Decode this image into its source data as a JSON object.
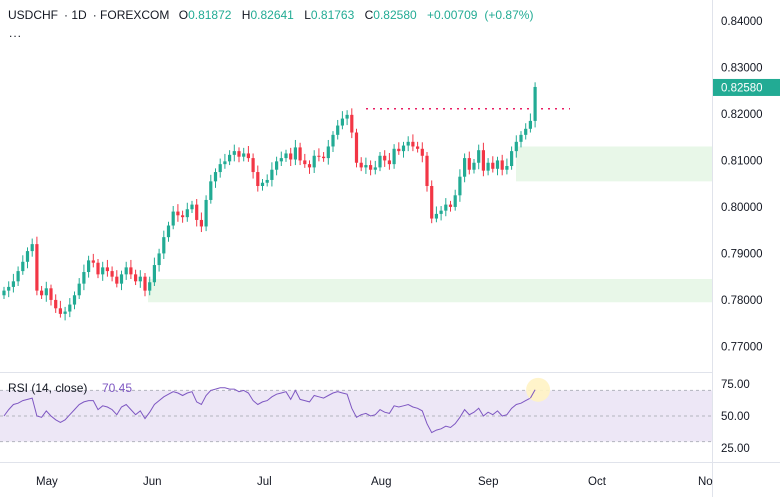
{
  "header": {
    "symbol": "USDCHF",
    "interval": "1D",
    "exchange": "FOREXCOM",
    "open_label": "O",
    "open": "0.81872",
    "high_label": "H",
    "high": "0.82641",
    "low_label": "L",
    "low": "0.81763",
    "close_label": "C",
    "close": "0.82580",
    "change": "+0.00709",
    "change_pct": "(+0.87%)",
    "more": "..."
  },
  "colors": {
    "up": "#22ab94",
    "down": "#f23645",
    "highlight": "#e8f7e8",
    "resistance": "#e91e63",
    "rsi_line": "#7e57c2",
    "rsi_band": "#ede7f6",
    "price_tag": "#22ab94"
  },
  "chart_data": [
    {
      "type": "candlestick",
      "ylim": [
        0.7645,
        0.8445
      ],
      "price_ticks": [
        "0.84000",
        "0.83000",
        "0.82000",
        "0.81000",
        "0.80000",
        "0.79000",
        "0.78000",
        "0.77000"
      ],
      "last_price_label": "0.82580",
      "x_ticks": [
        "May",
        "Jun",
        "Jul",
        "Aug",
        "Sep",
        "Oct",
        "No"
      ],
      "resistance_level": 0.8211,
      "zones": [
        {
          "from": 0.8055,
          "to": 0.813
        },
        {
          "from": 0.7795,
          "to": 0.7845
        }
      ],
      "close": [
        0.782,
        0.7828,
        0.784,
        0.7862,
        0.7882,
        0.7905,
        0.792,
        0.782,
        0.781,
        0.7825,
        0.78,
        0.7782,
        0.777,
        0.7775,
        0.779,
        0.781,
        0.7835,
        0.786,
        0.7885,
        0.788,
        0.7855,
        0.787,
        0.7862,
        0.785,
        0.7835,
        0.7855,
        0.787,
        0.7855,
        0.784,
        0.785,
        0.782,
        0.7838,
        0.7875,
        0.79,
        0.7935,
        0.796,
        0.799,
        0.7982,
        0.7978,
        0.7995,
        0.8005,
        0.7972,
        0.7958,
        0.8015,
        0.8055,
        0.8075,
        0.8092,
        0.8098,
        0.8112,
        0.812,
        0.8108,
        0.8115,
        0.8105,
        0.8075,
        0.8045,
        0.8052,
        0.8058,
        0.808,
        0.8098,
        0.8105,
        0.8115,
        0.8102,
        0.8128,
        0.81,
        0.8092,
        0.8085,
        0.811,
        0.8108,
        0.8105,
        0.813,
        0.8155,
        0.8175,
        0.819,
        0.8198,
        0.816,
        0.8095,
        0.8085,
        0.809,
        0.808,
        0.8085,
        0.811,
        0.81,
        0.8092,
        0.8125,
        0.812,
        0.8132,
        0.814,
        0.813,
        0.8125,
        0.811,
        0.8045,
        0.7975,
        0.7985,
        0.7992,
        0.8005,
        0.8,
        0.8025,
        0.8065,
        0.8105,
        0.808,
        0.8095,
        0.8122,
        0.8078,
        0.8095,
        0.8082,
        0.81,
        0.808,
        0.8088,
        0.812,
        0.814,
        0.8155,
        0.8168,
        0.8185,
        0.8258
      ],
      "rsi": {
        "label": "RSI (14, close)",
        "value": "70.45",
        "ylim": [
          25,
          75
        ],
        "ticks": [
          "75.00",
          "50.00",
          "25.00"
        ],
        "band": [
          30,
          70
        ],
        "values": [
          50,
          55,
          59,
          60,
          62,
          63,
          64,
          50,
          49,
          54,
          50,
          47,
          45,
          47,
          51,
          55,
          59,
          61,
          62,
          62,
          55,
          58,
          57,
          55,
          51,
          57,
          59,
          55,
          51,
          54,
          48,
          53,
          59,
          62,
          65,
          67,
          69,
          68,
          66,
          68,
          69,
          61,
          59,
          66,
          70,
          71,
          72,
          72,
          71,
          71,
          69,
          70,
          68,
          62,
          59,
          61,
          62,
          65,
          67,
          68,
          69,
          63,
          70,
          63,
          62,
          61,
          66,
          65,
          64,
          66,
          68,
          69,
          68,
          67,
          56,
          49,
          51,
          52,
          50,
          51,
          55,
          53,
          52,
          58,
          57,
          58,
          59,
          57,
          56,
          54,
          44,
          37,
          39,
          40,
          42,
          41,
          44,
          49,
          55,
          51,
          53,
          56,
          50,
          53,
          51,
          54,
          50,
          51,
          56,
          59,
          60,
          62,
          64,
          70.45
        ]
      }
    }
  ]
}
